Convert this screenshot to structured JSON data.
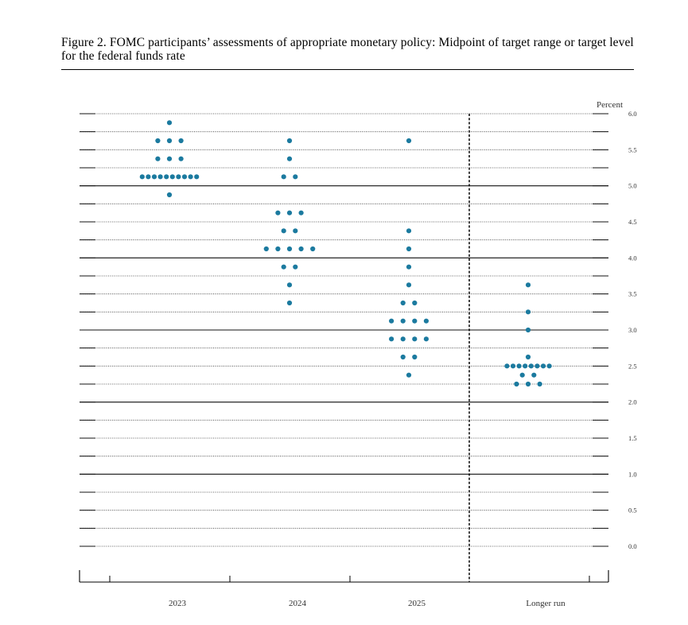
{
  "figure": {
    "caption": "Figure 2.  FOMC participants’ assessments of appropriate monetary policy: Midpoint of target range or target level for the federal funds rate"
  },
  "chart_data": {
    "type": "scatter",
    "title": "Figure 2.  FOMC participants’ assessments of appropriate monetary policy: Midpoint of target range or target level for the federal funds rate",
    "ylabel": "Percent",
    "xlabel": "",
    "ylim": [
      0.0,
      6.0
    ],
    "y_ticks": [
      "0.0",
      "0.5",
      "1.0",
      "1.5",
      "2.0",
      "2.5",
      "3.0",
      "3.5",
      "4.0",
      "4.5",
      "5.0",
      "5.5",
      "6.0"
    ],
    "categories": [
      "2023",
      "2024",
      "2025",
      "Longer run"
    ],
    "dot_color": "#1b7a9f",
    "rows": [
      {
        "category": "2023",
        "value": 5.875,
        "count": 1
      },
      {
        "category": "2023",
        "value": 5.625,
        "count": 3
      },
      {
        "category": "2023",
        "value": 5.375,
        "count": 3
      },
      {
        "category": "2023",
        "value": 5.125,
        "count": 10
      },
      {
        "category": "2023",
        "value": 4.875,
        "count": 1
      },
      {
        "category": "2024",
        "value": 5.625,
        "count": 1
      },
      {
        "category": "2024",
        "value": 5.375,
        "count": 1
      },
      {
        "category": "2024",
        "value": 5.125,
        "count": 2
      },
      {
        "category": "2024",
        "value": 4.625,
        "count": 3
      },
      {
        "category": "2024",
        "value": 4.375,
        "count": 2
      },
      {
        "category": "2024",
        "value": 4.125,
        "count": 5
      },
      {
        "category": "2024",
        "value": 3.875,
        "count": 2
      },
      {
        "category": "2024",
        "value": 3.625,
        "count": 1
      },
      {
        "category": "2024",
        "value": 3.375,
        "count": 1
      },
      {
        "category": "2025",
        "value": 5.625,
        "count": 1
      },
      {
        "category": "2025",
        "value": 4.375,
        "count": 1
      },
      {
        "category": "2025",
        "value": 4.125,
        "count": 1
      },
      {
        "category": "2025",
        "value": 3.875,
        "count": 1
      },
      {
        "category": "2025",
        "value": 3.625,
        "count": 1
      },
      {
        "category": "2025",
        "value": 3.375,
        "count": 2
      },
      {
        "category": "2025",
        "value": 3.125,
        "count": 4
      },
      {
        "category": "2025",
        "value": 2.875,
        "count": 4
      },
      {
        "category": "2025",
        "value": 2.625,
        "count": 2
      },
      {
        "category": "2025",
        "value": 2.375,
        "count": 1
      },
      {
        "category": "Longer run",
        "value": 3.625,
        "count": 1
      },
      {
        "category": "Longer run",
        "value": 3.25,
        "count": 1
      },
      {
        "category": "Longer run",
        "value": 3.0,
        "count": 1
      },
      {
        "category": "Longer run",
        "value": 2.625,
        "count": 1
      },
      {
        "category": "Longer run",
        "value": 2.5,
        "count": 8
      },
      {
        "category": "Longer run",
        "value": 2.375,
        "count": 2
      },
      {
        "category": "Longer run",
        "value": 2.25,
        "count": 3
      }
    ]
  }
}
